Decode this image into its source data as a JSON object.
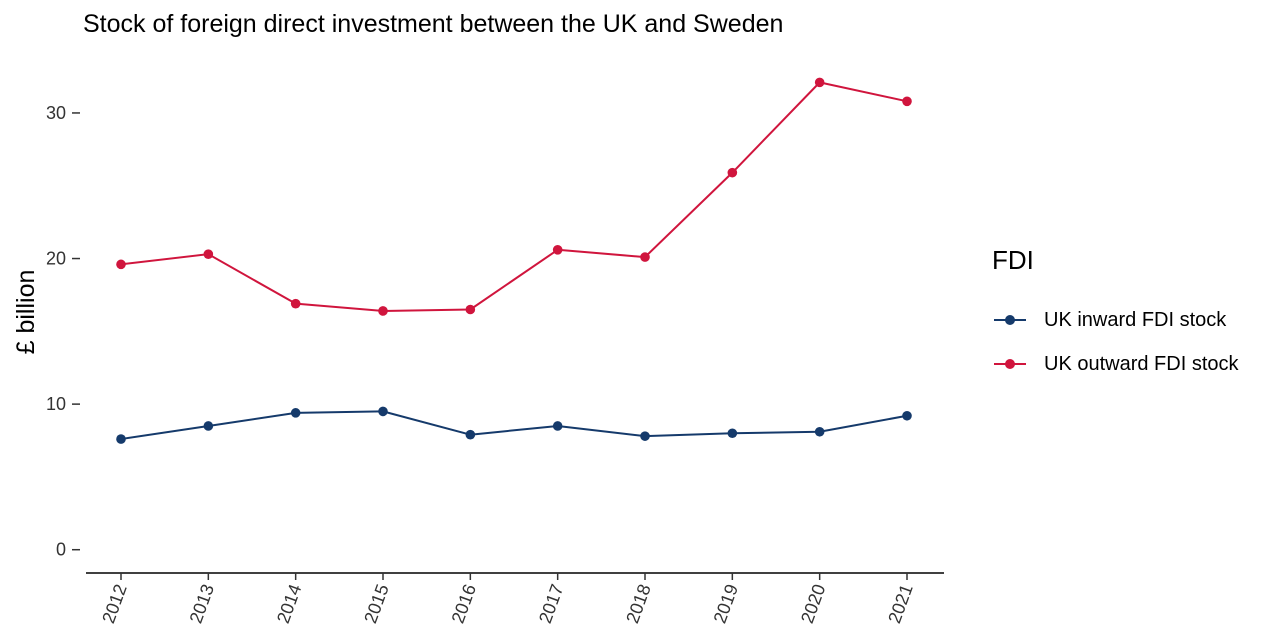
{
  "chart_data": {
    "type": "line",
    "title": "Stock of foreign direct investment between the UK and Sweden",
    "xlabel": "",
    "ylabel": "£ billion",
    "categories": [
      "2012",
      "2013",
      "2014",
      "2015",
      "2016",
      "2017",
      "2018",
      "2019",
      "2020",
      "2021"
    ],
    "ylim": [
      -1.6,
      33.5
    ],
    "yticks": [
      0,
      10,
      20,
      30
    ],
    "grid": false,
    "legend_title": "FDI",
    "legend_position": "right",
    "series": [
      {
        "name": "UK inward FDI stock",
        "color": "#153a6b",
        "values": [
          7.6,
          8.5,
          9.4,
          9.5,
          7.9,
          8.5,
          7.8,
          8.0,
          8.1,
          9.2
        ]
      },
      {
        "name": "UK outward FDI stock",
        "color": "#d0153d",
        "values": [
          19.6,
          20.3,
          16.9,
          16.4,
          16.5,
          20.6,
          20.1,
          25.9,
          32.1,
          30.8
        ]
      }
    ]
  }
}
